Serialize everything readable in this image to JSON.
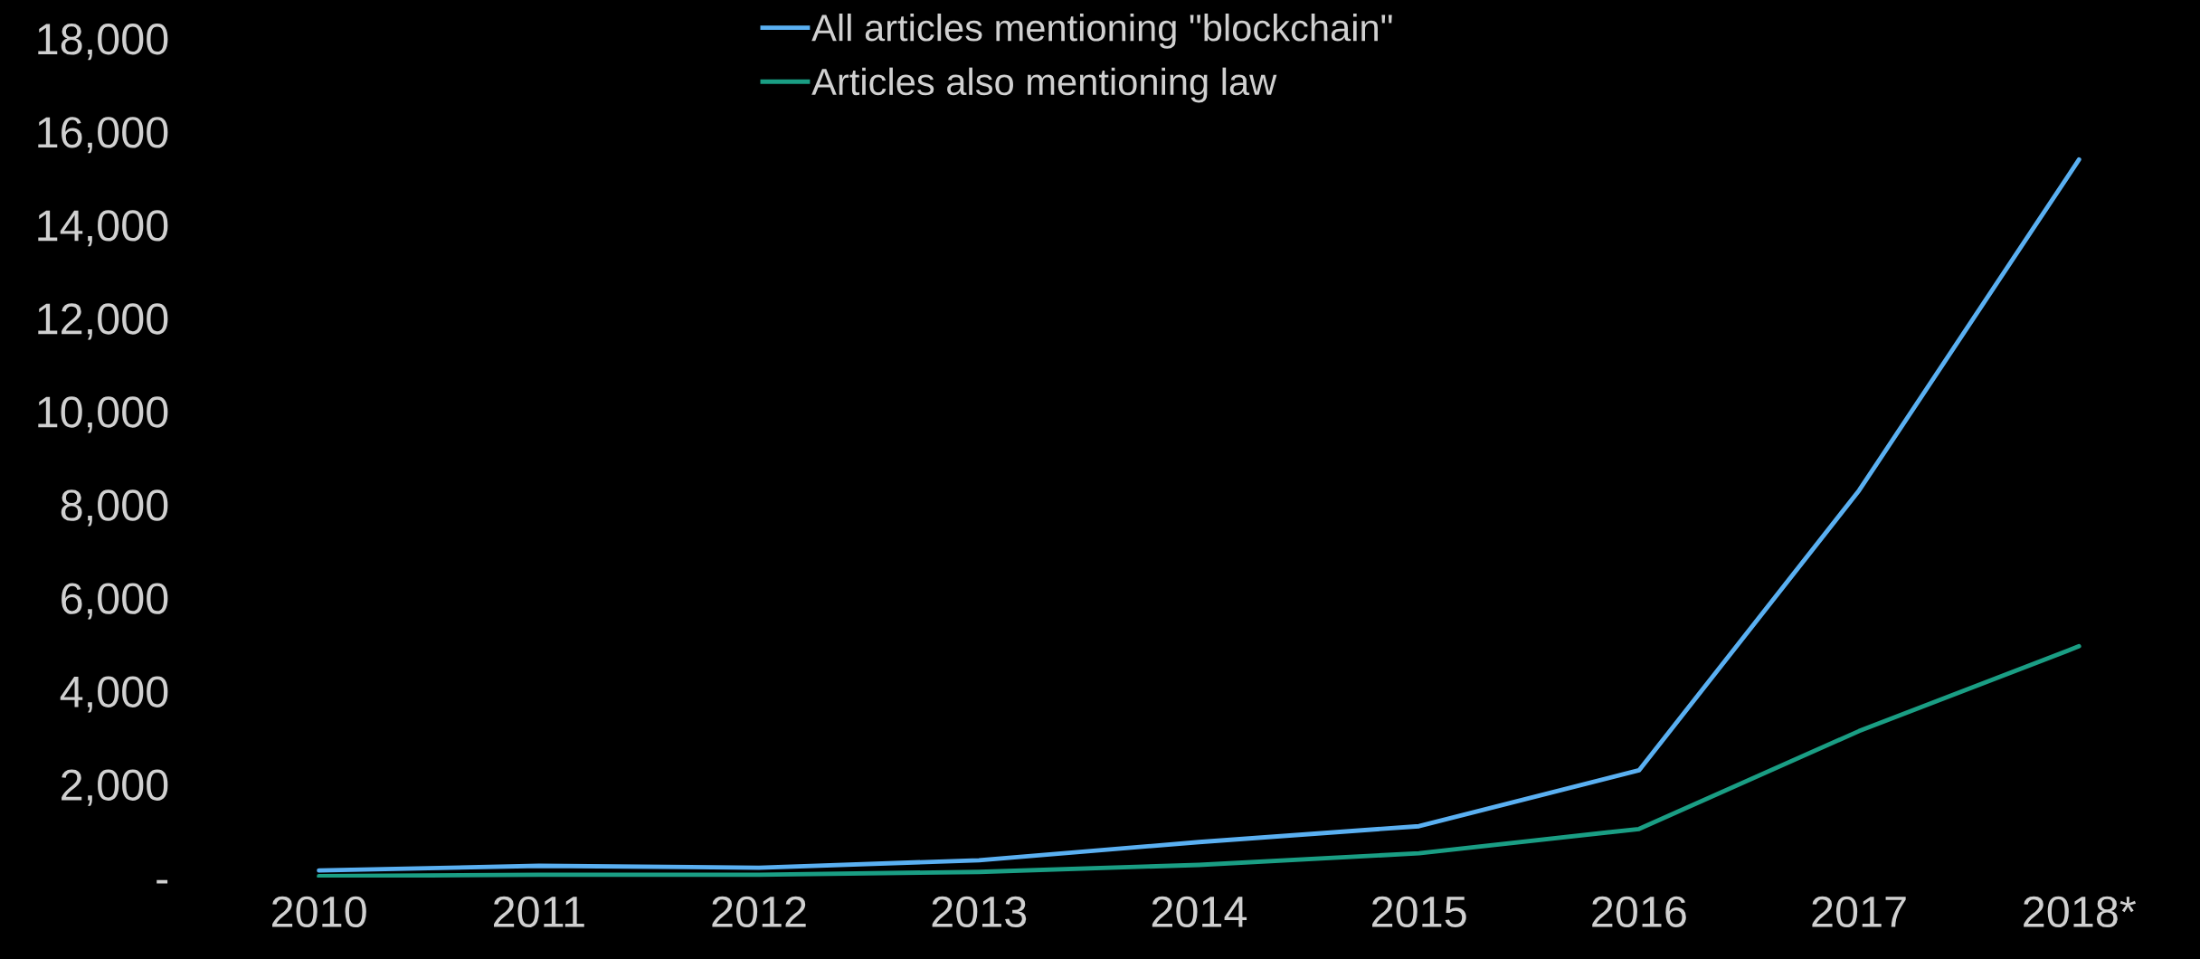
{
  "chart_data": {
    "type": "line",
    "categories": [
      "2010",
      "2011",
      "2012",
      "2013",
      "2014",
      "2015",
      "2016",
      "2017",
      "2018*"
    ],
    "series": [
      {
        "name": "All articles mentioning \"blockchain\"",
        "color": "#5ab0f2",
        "values": [
          150,
          250,
          210,
          370,
          760,
          1100,
          2300,
          8300,
          15400
        ]
      },
      {
        "name": "Articles also mentioning law",
        "color": "#1a9e84",
        "values": [
          30,
          60,
          60,
          120,
          270,
          520,
          1040,
          3140,
          4960
        ]
      }
    ],
    "ylim": [
      0,
      18000
    ],
    "yticks": [
      {
        "value": 0,
        "label": "-"
      },
      {
        "value": 2000,
        "label": "2,000"
      },
      {
        "value": 4000,
        "label": "4,000"
      },
      {
        "value": 6000,
        "label": "6,000"
      },
      {
        "value": 8000,
        "label": "8,000"
      },
      {
        "value": 10000,
        "label": "10,000"
      },
      {
        "value": 12000,
        "label": "12,000"
      },
      {
        "value": 14000,
        "label": "14,000"
      },
      {
        "value": 16000,
        "label": "16,000"
      },
      {
        "value": 18000,
        "label": "18,000"
      }
    ],
    "grid": false,
    "legend": "top",
    "marker": "none",
    "line_style": "solid"
  }
}
